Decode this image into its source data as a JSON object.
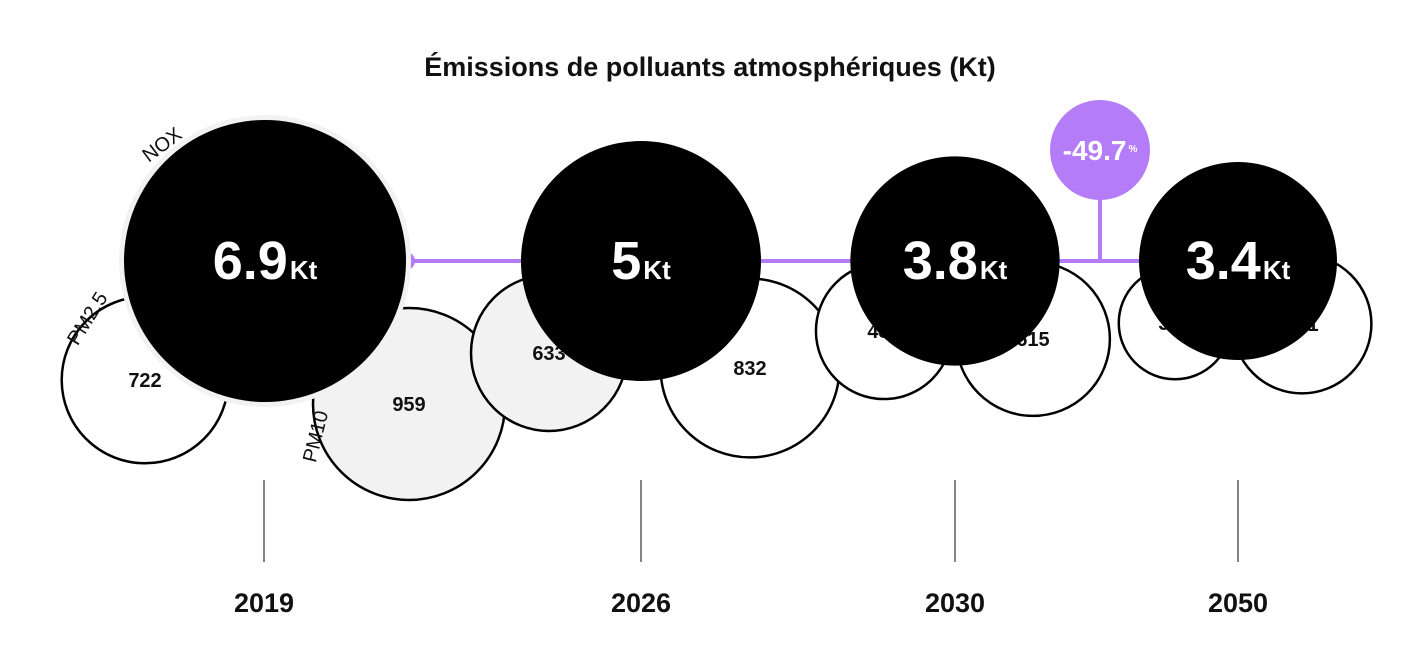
{
  "chart_data": {
    "type": "bubble",
    "title": "Émissions de polluants atmosphériques (Kt)",
    "categories": [
      "2019",
      "2026",
      "2030",
      "2050"
    ],
    "unit": "Kt",
    "series": [
      {
        "name": "NOX",
        "values": [
          6.9,
          5,
          3.8,
          3.4
        ],
        "display": [
          "6.9",
          "5",
          "3.8",
          "3.4"
        ]
      },
      {
        "name": "PM2.5",
        "values": [
          722,
          633,
          482,
          329
        ],
        "display": [
          "722",
          "633",
          "482",
          "329"
        ]
      },
      {
        "name": "PM10",
        "values": [
          959,
          832,
          615,
          501
        ],
        "display": [
          "959",
          "832",
          "615",
          "501"
        ]
      }
    ],
    "change": {
      "value": "-49.7",
      "unit": "%"
    },
    "colors": {
      "nox": "#000000",
      "pm_filled": "#f2f2f2",
      "pm_empty": "#ffffff",
      "accent": "#b57cf7",
      "axis": "#333333"
    }
  }
}
